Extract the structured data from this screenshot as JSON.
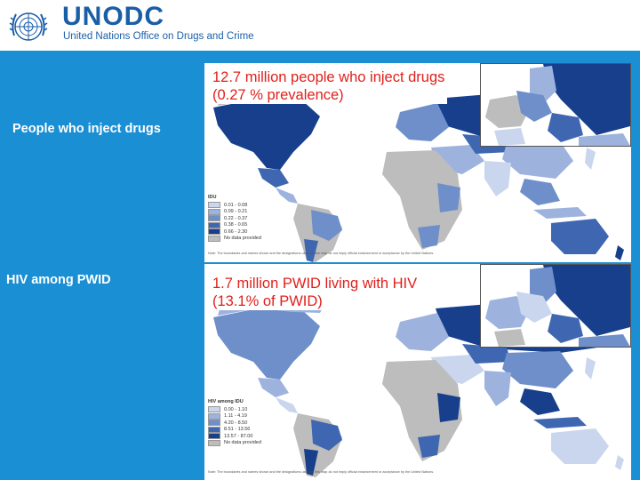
{
  "brand": {
    "name": "UNODC",
    "subtitle": "United Nations Office on Drugs and Crime",
    "color": "#1a5ea8"
  },
  "background_color": "#1b8fd3",
  "side_labels": {
    "pwid": "People who inject drugs",
    "hiv": "HIV among PWID"
  },
  "maps": [
    {
      "headline_line1": "12.7 million people who inject drugs",
      "headline_line2": "(0.27 %  prevalence)",
      "legend": {
        "title": "IDU",
        "items": [
          {
            "label": "0.01 - 0.08",
            "color": "#c9d6ee"
          },
          {
            "label": "0.09 - 0.21",
            "color": "#9db3de"
          },
          {
            "label": "0.22 - 0.37",
            "color": "#6f8fca"
          },
          {
            "label": "0.38 - 0.65",
            "color": "#3f66b0"
          },
          {
            "label": "0.66 - 2.30",
            "color": "#173f8c"
          },
          {
            "label": "No data provided",
            "color": "#bdbdbd"
          }
        ]
      },
      "note": "Note: The boundaries and names shown and the designations used on this map do not imply official endorsement or acceptance by the United Nations."
    },
    {
      "headline_line1": "1.7 million PWID living with HIV",
      "headline_line2": "(13.1% of PWID)",
      "legend": {
        "title": "HIV among IDU",
        "items": [
          {
            "label": "0.00 - 1.10",
            "color": "#c9d6ee"
          },
          {
            "label": "1.11 - 4.19",
            "color": "#9db3de"
          },
          {
            "label": "4.20 - 8.50",
            "color": "#6f8fca"
          },
          {
            "label": "8.51 - 13.56",
            "color": "#3f66b0"
          },
          {
            "label": "13.57 - 87.00",
            "color": "#173f8c"
          },
          {
            "label": "No data provided",
            "color": "#bdbdbd"
          }
        ]
      },
      "note": "Note: The boundaries and names shown and the designations used on this map do not imply official endorsement or acceptance by the United Nations."
    }
  ]
}
